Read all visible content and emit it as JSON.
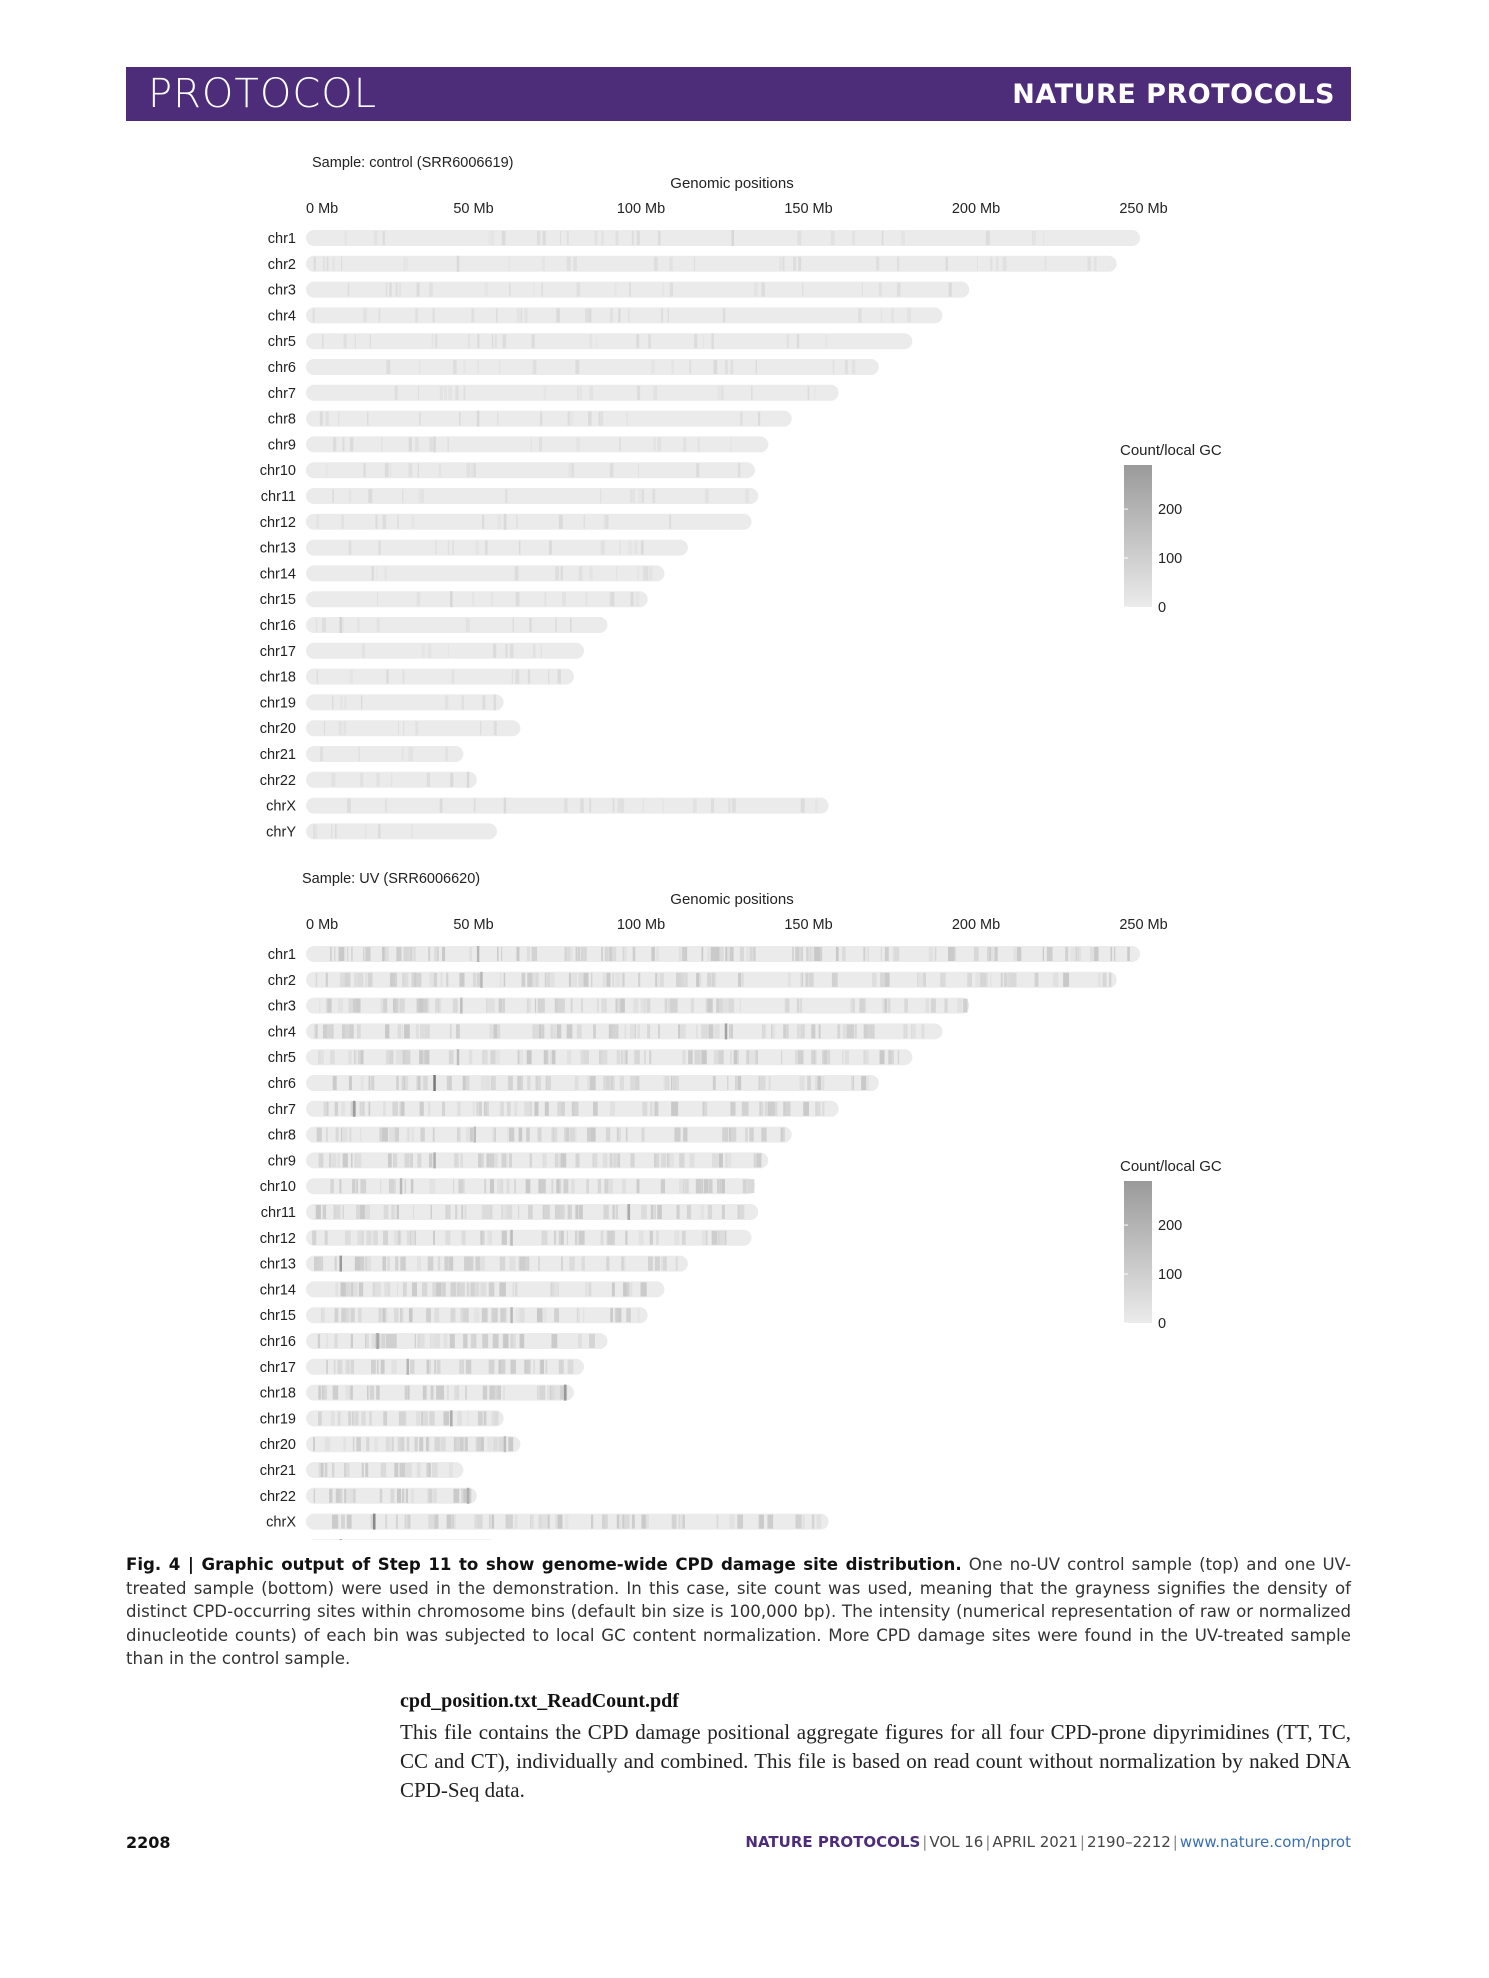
{
  "header": {
    "section": "PROTOCOL",
    "journal": "NATURE PROTOCOLS"
  },
  "chart_data": [
    {
      "type": "heatmap",
      "title": "Sample: control (SRR6006619)",
      "xlabel": "Genomic positions",
      "ticks": [
        "0 Mb",
        "50 Mb",
        "100 Mb",
        "150 Mb",
        "200 Mb",
        "250 Mb"
      ],
      "xlim": [
        0,
        250
      ],
      "chromosomes": [
        "chr1",
        "chr2",
        "chr3",
        "chr4",
        "chr5",
        "chr6",
        "chr7",
        "chr8",
        "chr9",
        "chr10",
        "chr11",
        "chr12",
        "chr13",
        "chr14",
        "chr15",
        "chr16",
        "chr17",
        "chr18",
        "chr19",
        "chr20",
        "chr21",
        "chr22",
        "chrX",
        "chrY"
      ],
      "lengths_mb": [
        249,
        242,
        198,
        190,
        181,
        171,
        159,
        145,
        138,
        134,
        135,
        133,
        114,
        107,
        102,
        90,
        83,
        80,
        59,
        64,
        47,
        51,
        156,
        57
      ],
      "legend": {
        "title": "Count/local GC",
        "labels": [
          "200",
          "100",
          "0"
        ],
        "max": 290
      },
      "highlights_mb": [
        [
          127,
          20
        ],
        [
          51,
          18
        ],
        [
          43,
          25
        ],
        [
          50,
          18
        ],
        [
          121,
          12
        ],
        [
          59,
          15
        ],
        [
          61,
          12
        ],
        [
          45,
          15
        ],
        [
          38,
          18
        ],
        [
          10,
          30
        ],
        [
          59,
          16
        ]
      ]
    },
    {
      "type": "heatmap",
      "title": "Sample: UV (SRR6006620)",
      "xlabel": "Genomic positions",
      "ticks": [
        "0 Mb",
        "50 Mb",
        "100 Mb",
        "150 Mb",
        "200 Mb",
        "250 Mb"
      ],
      "xlim": [
        0,
        250
      ],
      "chromosomes": [
        "chr1",
        "chr2",
        "chr3",
        "chr4",
        "chr5",
        "chr6",
        "chr7",
        "chr8",
        "chr9",
        "chr10",
        "chr11",
        "chr12",
        "chr13",
        "chr14",
        "chr15",
        "chr16",
        "chr17",
        "chr18",
        "chr19",
        "chr20",
        "chr21",
        "chr22",
        "chrX",
        "chrY"
      ],
      "lengths_mb": [
        249,
        242,
        198,
        190,
        181,
        171,
        159,
        145,
        138,
        134,
        135,
        133,
        114,
        107,
        102,
        90,
        83,
        80,
        59,
        64,
        47,
        51,
        156,
        57
      ],
      "legend": {
        "title": "Count/local GC",
        "labels": [
          "200",
          "100",
          "0"
        ],
        "max": 290
      },
      "highlights_mb": [
        [
          125,
          140
        ],
        [
          96,
          120
        ],
        [
          93,
          160
        ],
        [
          51,
          90
        ],
        [
          50,
          80
        ],
        [
          61,
          90
        ],
        [
          61,
          110
        ],
        [
          45,
          80
        ],
        [
          61,
          80
        ],
        [
          43,
          120
        ],
        [
          52,
          90
        ],
        [
          38,
          110
        ],
        [
          21,
          130
        ],
        [
          20,
          200
        ],
        [
          38,
          230
        ],
        [
          10,
          160
        ],
        [
          59,
          80
        ],
        [
          46,
          80
        ],
        [
          28,
          90
        ],
        [
          30,
          100
        ],
        [
          10,
          220
        ],
        [
          14,
          150
        ]
      ]
    }
  ],
  "caption": {
    "label": "Fig. 4 | Graphic output of Step 11 to show genome-wide CPD damage site distribution.",
    "text": " One no-UV control sample (top) and one UV-treated sample (bottom) were used in the demonstration. In this case, site count was used, meaning that the grayness signifies the density of distinct CPD-occurring sites within chromosome bins (default bin size is 100,000 bp). The intensity (numerical representation of raw or normalized dinucleotide counts) of each bin was subjected to local GC content normalization. More CPD damage sites were found in the UV-treated sample than in the control sample."
  },
  "body": {
    "file_title": "cpd_position.txt_ReadCount.pdf",
    "paragraph": "This file contains the CPD damage positional aggregate figures for all four CPD-prone dipyrimidines (TT, TC, CC and CT), individually and combined. This file is based on read count without normalization by naked DNA CPD-Seq data."
  },
  "footer": {
    "page": "2208",
    "journal": "NATURE PROTOCOLS",
    "vol": "VOL 16",
    "date": "APRIL 2021",
    "pages": "2190–2212",
    "url": "www.nature.com/nprot"
  }
}
